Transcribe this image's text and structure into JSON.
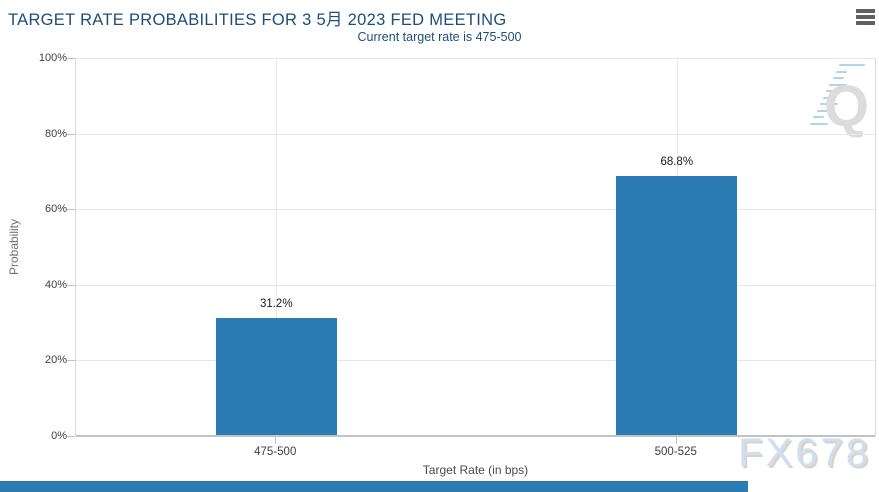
{
  "chart_data": {
    "type": "bar",
    "title": "TARGET RATE PROBABILITIES FOR 3 5月 2023 FED MEETING",
    "subtitle": "Current target rate is 475-500",
    "categories": [
      "475-500",
      "500-525"
    ],
    "values": [
      31.2,
      68.8
    ],
    "value_labels": [
      "31.2%",
      "68.8%"
    ],
    "xlabel": "Target Rate (in bps)",
    "ylabel": "Probability",
    "ylim": [
      0,
      100
    ],
    "yticks": [
      0,
      20,
      40,
      60,
      80,
      100
    ],
    "ytick_labels": [
      "0%",
      "20%",
      "40%",
      "60%",
      "80%",
      "100%"
    ],
    "grid": "horizontal gridlines at each 20%, vertical gridline at each category center",
    "legend": false,
    "bar_color": "#2b7bb4"
  },
  "header": {
    "menu_icon": "hamburger-icon"
  },
  "watermarks": {
    "chart_logo_letter": "Q",
    "site_watermark": "FX678"
  },
  "colors": {
    "title_text": "#1d4e79",
    "subtitle_text": "#1d4e79",
    "bar": "#2b7bb4",
    "axis_text": "#404040",
    "gridline": "#e7e7e7",
    "axis_line": "#c2c2c2",
    "footer_bar": "#2b7bb4",
    "logo_gray": "#dcdcdc",
    "logo_blue": "#aed5ea",
    "site_watermark_blue": "#cfdff0"
  }
}
